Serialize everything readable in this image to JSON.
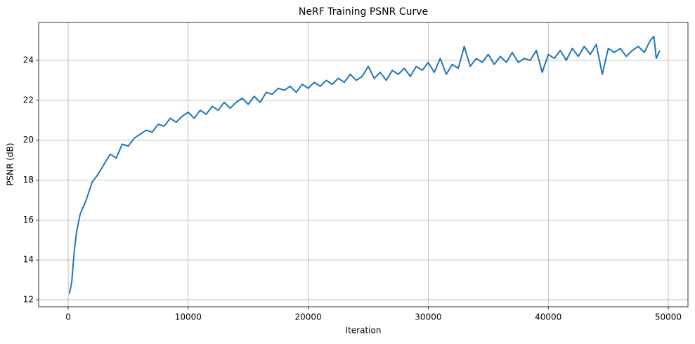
{
  "chart_data": {
    "type": "line",
    "title": "NeRF Training PSNR Curve",
    "x_label": "Iteration",
    "y_label": "PSNR (dB)",
    "x": [
      100,
      300,
      500,
      700,
      1000,
      1500,
      2000,
      2500,
      3000,
      3500,
      4000,
      4500,
      5000,
      5500,
      6000,
      6500,
      7000,
      7500,
      8000,
      8500,
      9000,
      9500,
      10000,
      10500,
      11000,
      11500,
      12000,
      12500,
      13000,
      13500,
      14000,
      14500,
      15000,
      15500,
      16000,
      16500,
      17000,
      17500,
      18000,
      18500,
      19000,
      19500,
      20000,
      20500,
      21000,
      21500,
      22000,
      22500,
      23000,
      23500,
      24000,
      24500,
      25000,
      25500,
      26000,
      26500,
      27000,
      27500,
      28000,
      28500,
      29000,
      29500,
      30000,
      30500,
      31000,
      31500,
      32000,
      32500,
      33000,
      33500,
      34000,
      34500,
      35000,
      35500,
      36000,
      36500,
      37000,
      37500,
      38000,
      38500,
      39000,
      39500,
      40000,
      40500,
      41000,
      41500,
      42000,
      42500,
      43000,
      43500,
      44000,
      44500,
      45000,
      45500,
      46000,
      46500,
      47000,
      47500,
      48000,
      48500,
      48800,
      49000,
      49300
    ],
    "series": [
      {
        "name": "PSNR",
        "color": "#1f77b4",
        "values": [
          12.3,
          12.9,
          14.4,
          15.4,
          16.3,
          17.0,
          17.9,
          18.3,
          18.8,
          19.3,
          19.1,
          19.8,
          19.7,
          20.1,
          20.3,
          20.5,
          20.4,
          20.8,
          20.7,
          21.1,
          20.9,
          21.2,
          21.4,
          21.1,
          21.5,
          21.3,
          21.7,
          21.5,
          21.9,
          21.6,
          21.9,
          22.1,
          21.8,
          22.2,
          21.9,
          22.4,
          22.3,
          22.6,
          22.5,
          22.7,
          22.4,
          22.8,
          22.6,
          22.9,
          22.7,
          23.0,
          22.8,
          23.1,
          22.9,
          23.3,
          23.0,
          23.2,
          23.7,
          23.1,
          23.4,
          23.0,
          23.5,
          23.3,
          23.6,
          23.2,
          23.7,
          23.5,
          23.9,
          23.4,
          24.1,
          23.3,
          23.8,
          23.6,
          24.7,
          23.7,
          24.1,
          23.9,
          24.3,
          23.8,
          24.2,
          23.9,
          24.4,
          23.9,
          24.1,
          24.0,
          24.5,
          23.4,
          24.3,
          24.1,
          24.5,
          24.0,
          24.6,
          24.2,
          24.7,
          24.3,
          24.8,
          23.3,
          24.6,
          24.4,
          24.6,
          24.2,
          24.5,
          24.7,
          24.4,
          25.0,
          25.2,
          24.1,
          24.5
        ]
      }
    ],
    "xlim": [
      -2460,
      51640
    ],
    "ylim": [
      11.65,
      25.9
    ],
    "xticks": [
      0,
      10000,
      20000,
      30000,
      40000,
      50000
    ],
    "yticks": [
      12,
      14,
      16,
      18,
      20,
      22,
      24
    ],
    "grid": true
  }
}
